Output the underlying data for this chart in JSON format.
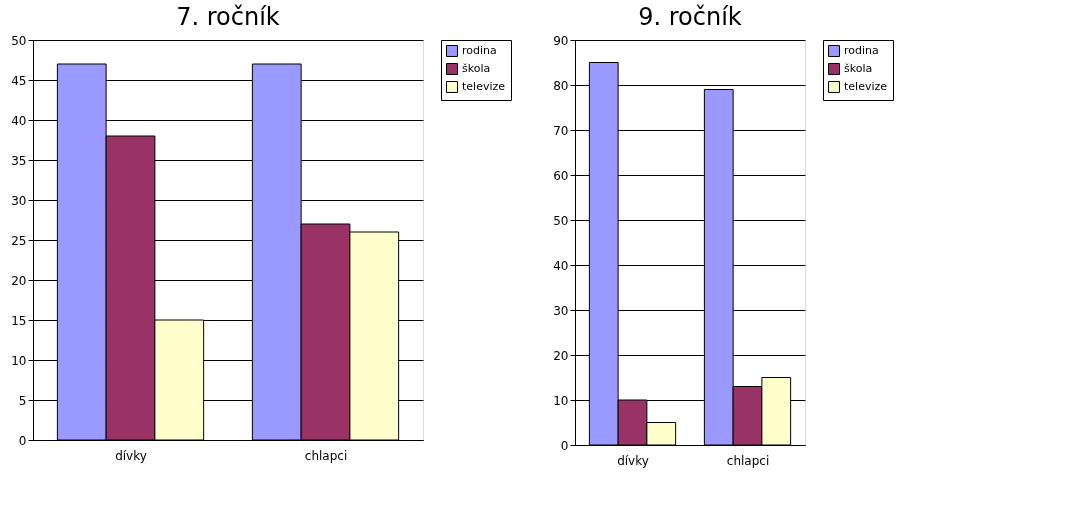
{
  "chart_data": [
    {
      "type": "bar",
      "title": "7. ročník",
      "categories": [
        "dívky",
        "chlapci"
      ],
      "series": [
        {
          "name": "rodina",
          "color": "#9999ff",
          "values": [
            47,
            47
          ]
        },
        {
          "name": "škola",
          "color": "#993366",
          "values": [
            38,
            27
          ]
        },
        {
          "name": "televize",
          "color": "#ffffcc",
          "values": [
            15,
            26
          ]
        }
      ],
      "ylim": [
        0,
        50
      ],
      "yticks": [
        0,
        5,
        10,
        15,
        20,
        25,
        30,
        35,
        40,
        45,
        50
      ],
      "grid": "y",
      "legend": "right"
    },
    {
      "type": "bar",
      "title": "9. ročník",
      "categories": [
        "dívky",
        "chlapci"
      ],
      "series": [
        {
          "name": "rodina",
          "color": "#9999ff",
          "values": [
            85,
            79
          ]
        },
        {
          "name": "škola",
          "color": "#993366",
          "values": [
            10,
            13
          ]
        },
        {
          "name": "televize",
          "color": "#ffffcc",
          "values": [
            5,
            15
          ]
        }
      ],
      "ylim": [
        0,
        90
      ],
      "yticks": [
        0,
        10,
        20,
        30,
        40,
        50,
        60,
        70,
        80,
        90
      ],
      "grid": "y",
      "legend": "right"
    }
  ]
}
